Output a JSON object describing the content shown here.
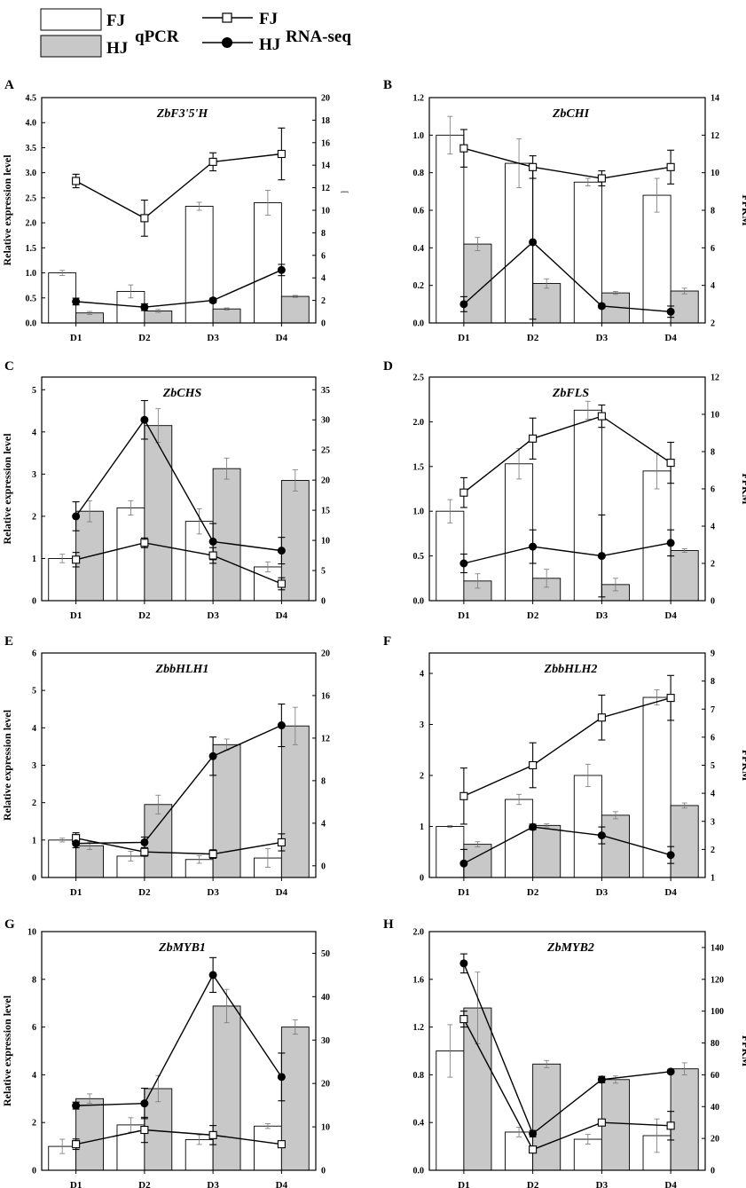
{
  "legend": {
    "fj_label": "FJ",
    "hj_label": "HJ",
    "qpcr_label": "qPCR",
    "rnaseq_fj_label": "FJ",
    "rnaseq_hj_label": "HJ",
    "rnaseq_label": "RNA-seq"
  },
  "colors": {
    "hj_bar": "#c8c8c8",
    "fj_bar": "#ffffff",
    "stroke": "#000000"
  },
  "chart_data": [
    {
      "panel": "A",
      "title": "ZbF3'5'H",
      "type": "bar+line",
      "categories": [
        "D1",
        "D2",
        "D3",
        "D4"
      ],
      "ylabel": "Relative expression level",
      "y2label": "",
      "ylim": [
        0,
        4.5
      ],
      "yticks": [
        "0.0",
        "0.5",
        "1.0",
        "1.5",
        "2.0",
        "2.5",
        "3.0",
        "3.5",
        "4.0",
        "4.5"
      ],
      "y2lim": [
        0,
        20
      ],
      "y2ticks": [
        "0",
        "2",
        "4",
        "6",
        "8",
        "10",
        "12",
        "14",
        "16",
        "18",
        "20"
      ],
      "y2_extra_label": "[",
      "qpcr_fj": [
        1.0,
        0.63,
        2.33,
        2.4
      ],
      "qpcr_fj_err": [
        0.05,
        0.13,
        0.08,
        0.25
      ],
      "qpcr_hj": [
        0.2,
        0.24,
        0.28,
        0.53
      ],
      "qpcr_hj_err": [
        0.03,
        0.03,
        0.02,
        0.02
      ],
      "rnaseq_fj": [
        12.6,
        9.3,
        14.3,
        15.0
      ],
      "rnaseq_fj_err": [
        0.6,
        1.6,
        0.8,
        2.3
      ],
      "rnaseq_hj": [
        1.9,
        1.4,
        2.0,
        4.7
      ],
      "rnaseq_hj_err": [
        0.3,
        0.3,
        0.2,
        0.5
      ]
    },
    {
      "panel": "B",
      "title": "ZbCHI",
      "type": "bar+line",
      "categories": [
        "D1",
        "D2",
        "D3",
        "D4"
      ],
      "ylabel": "",
      "y2label": "FPKM",
      "ylim": [
        0,
        1.2
      ],
      "yticks": [
        "0.0",
        "0.2",
        "0.4",
        "0.6",
        "0.8",
        "1.0",
        "1.2"
      ],
      "y2lim": [
        2,
        14
      ],
      "y2ticks": [
        "2",
        "4",
        "6",
        "8",
        "10",
        "12",
        "14"
      ],
      "y2_extra_label": "",
      "qpcr_fj": [
        1.0,
        0.85,
        0.75,
        0.68
      ],
      "qpcr_fj_err": [
        0.1,
        0.13,
        0.02,
        0.09
      ],
      "qpcr_hj": [
        0.42,
        0.21,
        0.16,
        0.17
      ],
      "qpcr_hj_err": [
        0.035,
        0.025,
        0.008,
        0.015
      ],
      "rnaseq_fj": [
        11.3,
        10.3,
        9.7,
        10.3
      ],
      "rnaseq_fj_err": [
        1.0,
        0.6,
        0.4,
        0.9
      ],
      "rnaseq_hj": [
        3.0,
        6.3,
        2.9,
        2.6
      ],
      "rnaseq_hj_err": [
        0.4,
        4.1,
        0.1,
        0.3
      ]
    },
    {
      "panel": "C",
      "title": "ZbCHS",
      "type": "bar+line",
      "categories": [
        "D1",
        "D2",
        "D3",
        "D4"
      ],
      "ylabel": "Relative expression level",
      "y2label": "",
      "ylim": [
        0,
        5.3
      ],
      "yticks": [
        "0",
        "1",
        "2",
        "3",
        "4",
        "5"
      ],
      "y2lim": [
        0,
        37.1
      ],
      "y2ticks": [
        "0",
        "5",
        "10",
        "15",
        "20",
        "25",
        "30",
        "35"
      ],
      "y2_extra_label": "",
      "qpcr_fj": [
        1.0,
        2.2,
        1.88,
        0.8
      ],
      "qpcr_fj_err": [
        0.1,
        0.17,
        0.3,
        0.12
      ],
      "qpcr_hj": [
        2.12,
        4.15,
        3.13,
        2.85
      ],
      "qpcr_hj_err": [
        0.25,
        0.4,
        0.25,
        0.25
      ],
      "rnaseq_fj": [
        6.8,
        9.6,
        7.5,
        2.8
      ],
      "rnaseq_fj_err": [
        1.2,
        0.8,
        1.3,
        1.0
      ],
      "rnaseq_hj": [
        14.0,
        30.0,
        9.8,
        8.3
      ],
      "rnaseq_hj_err": [
        2.4,
        3.2,
        3.0,
        2.2
      ]
    },
    {
      "panel": "D",
      "title": "ZbFLS",
      "type": "bar+line",
      "categories": [
        "D1",
        "D2",
        "D3",
        "D4"
      ],
      "ylabel": "",
      "y2label": "FPKM",
      "ylim": [
        0,
        2.5
      ],
      "yticks": [
        "0.0",
        "0.5",
        "1.0",
        "1.5",
        "2.0",
        "2.5"
      ],
      "y2lim": [
        0,
        12
      ],
      "y2ticks": [
        "0",
        "2",
        "4",
        "6",
        "8",
        "10",
        "12"
      ],
      "y2_extra_label": "",
      "qpcr_fj": [
        1.0,
        1.53,
        2.13,
        1.45
      ],
      "qpcr_fj_err": [
        0.13,
        0.17,
        0.1,
        0.2
      ],
      "qpcr_hj": [
        0.22,
        0.25,
        0.18,
        0.56
      ],
      "qpcr_hj_err": [
        0.08,
        0.1,
        0.07,
        0.02
      ],
      "rnaseq_fj": [
        5.8,
        8.7,
        9.9,
        7.4
      ],
      "rnaseq_fj_err": [
        0.8,
        1.1,
        0.6,
        1.1
      ],
      "rnaseq_hj": [
        2.0,
        2.9,
        2.4,
        3.1
      ],
      "rnaseq_hj_err": [
        0.5,
        0.9,
        2.2,
        0.7
      ]
    },
    {
      "panel": "E",
      "title": "ZbbHLH1",
      "type": "bar+line",
      "categories": [
        "D1",
        "D2",
        "D3",
        "D4"
      ],
      "ylabel": "Relative expression level",
      "y2label": "",
      "ylim": [
        0,
        6
      ],
      "yticks": [
        "0",
        "1",
        "2",
        "3",
        "4",
        "5",
        "6"
      ],
      "y2lim": [
        -1.1,
        20
      ],
      "y2ticks": [
        "0",
        "4",
        "8",
        "12",
        "16",
        "20"
      ],
      "y2_extra_label": "",
      "qpcr_fj": [
        1.0,
        0.57,
        0.48,
        0.52
      ],
      "qpcr_fj_err": [
        0.05,
        0.13,
        0.1,
        0.25
      ],
      "qpcr_hj": [
        0.85,
        1.95,
        3.55,
        4.05
      ],
      "qpcr_hj_err": [
        0.1,
        0.25,
        0.15,
        0.5
      ],
      "rnaseq_fj": [
        2.6,
        1.3,
        1.1,
        2.2
      ],
      "rnaseq_fj_err": [
        0.5,
        0.4,
        0.4,
        0.8
      ],
      "rnaseq_hj": [
        2.1,
        2.2,
        10.3,
        13.2
      ],
      "rnaseq_hj_err": [
        0.4,
        0.5,
        1.8,
        2.0
      ]
    },
    {
      "panel": "F",
      "title": "ZbbHLH2",
      "type": "bar+line",
      "categories": [
        "D1",
        "D2",
        "D3",
        "D4"
      ],
      "ylabel": "",
      "y2label": "FPKM",
      "ylim": [
        0,
        4.4
      ],
      "yticks": [
        "0",
        "1",
        "2",
        "3",
        "4"
      ],
      "y2lim": [
        1,
        9
      ],
      "y2ticks": [
        "1",
        "2",
        "3",
        "4",
        "5",
        "6",
        "7",
        "8",
        "9"
      ],
      "y2_extra_label": "",
      "qpcr_fj": [
        1.0,
        1.53,
        2.0,
        3.53
      ],
      "qpcr_fj_err": [
        0.02,
        0.1,
        0.22,
        0.15
      ],
      "qpcr_hj": [
        0.65,
        1.02,
        1.22,
        1.41
      ],
      "qpcr_hj_err": [
        0.05,
        0.03,
        0.07,
        0.05
      ],
      "rnaseq_fj": [
        3.9,
        5.0,
        6.7,
        7.4
      ],
      "rnaseq_fj_err": [
        1.0,
        0.8,
        0.8,
        0.8
      ],
      "rnaseq_hj": [
        1.5,
        2.8,
        2.5,
        1.8
      ],
      "rnaseq_hj_err": [
        0.5,
        0.1,
        0.3,
        0.3
      ]
    },
    {
      "panel": "G",
      "title": "ZbMYB1",
      "type": "bar+line",
      "categories": [
        "D1",
        "D2",
        "D3",
        "D4"
      ],
      "ylabel": "Relative expression level",
      "y2label": "",
      "ylim": [
        0,
        10
      ],
      "yticks": [
        "0",
        "2",
        "4",
        "6",
        "8",
        "10"
      ],
      "y2lim": [
        0,
        55
      ],
      "y2ticks": [
        "0",
        "10",
        "20",
        "30",
        "40",
        "50"
      ],
      "y2_extra_label": "",
      "qpcr_fj": [
        1.0,
        1.9,
        1.28,
        1.85
      ],
      "qpcr_fj_err": [
        0.3,
        0.3,
        0.2,
        0.1
      ],
      "qpcr_hj": [
        3.0,
        3.42,
        6.88,
        6.0
      ],
      "qpcr_hj_err": [
        0.2,
        0.55,
        0.7,
        0.3
      ],
      "rnaseq_fj": [
        6.0,
        9.3,
        8.1,
        6.0
      ],
      "rnaseq_fj_err": [
        1.2,
        2.9,
        2.2,
        0.3
      ],
      "rnaseq_hj": [
        14.9,
        15.4,
        45.0,
        21.5
      ],
      "rnaseq_hj_err": [
        0.8,
        3.5,
        4.0,
        5.5
      ]
    },
    {
      "panel": "H",
      "title": "ZbMYB2",
      "type": "bar+line",
      "categories": [
        "D1",
        "D2",
        "D3",
        "D4"
      ],
      "ylabel": "",
      "y2label": "FPKM",
      "ylim": [
        0,
        2.0
      ],
      "yticks": [
        "0.0",
        "0.4",
        "0.8",
        "1.2",
        "1.6",
        "2.0"
      ],
      "y2lim": [
        0,
        150
      ],
      "y2ticks": [
        "0",
        "20",
        "40",
        "60",
        "80",
        "100",
        "120",
        "140"
      ],
      "y2_extra_label": "",
      "qpcr_fj": [
        1.0,
        0.32,
        0.26,
        0.29
      ],
      "qpcr_fj_err": [
        0.22,
        0.04,
        0.04,
        0.14
      ],
      "qpcr_hj": [
        1.36,
        0.89,
        0.76,
        0.85
      ],
      "qpcr_hj_err": [
        0.3,
        0.03,
        0.03,
        0.05
      ],
      "rnaseq_fj": [
        95,
        13,
        30,
        28
      ],
      "rnaseq_fj_err": [
        5,
        2,
        2,
        9
      ],
      "rnaseq_hj": [
        130,
        23,
        57,
        62
      ],
      "rnaseq_hj_err": [
        6,
        2,
        2,
        1
      ]
    }
  ]
}
